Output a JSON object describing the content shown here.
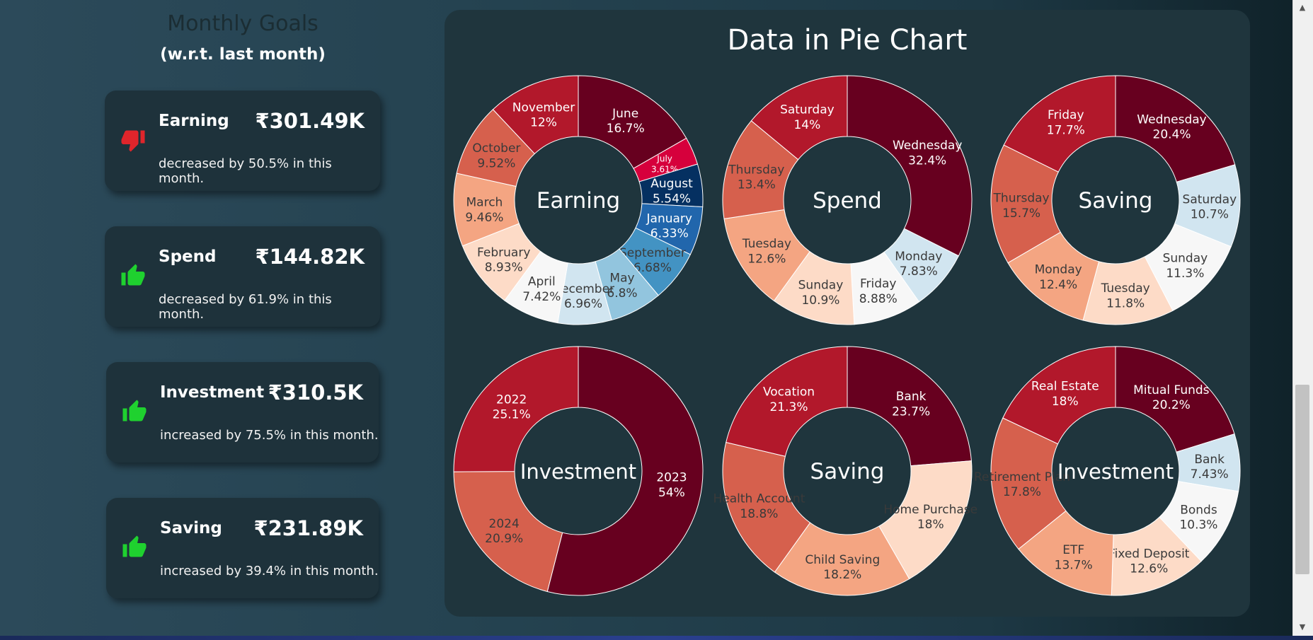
{
  "goals": {
    "title": "Monthly Goals",
    "subtitle": "(w.r.t. last month)",
    "cards": [
      {
        "name": "Earning",
        "amount": "₹301.49K",
        "desc": "decreased by 50.5% in this month.",
        "trend": "down",
        "color": "#e0252b"
      },
      {
        "name": "Spend",
        "amount": "₹144.82K",
        "desc": "decreased by 61.9% in this month.",
        "trend": "up",
        "color": "#1fd12f"
      },
      {
        "name": "Investment",
        "amount": "₹310.5K",
        "desc": "increased by 75.5% in this month.",
        "trend": "up",
        "color": "#1fd12f"
      },
      {
        "name": "Saving",
        "amount": "₹231.89K",
        "desc": "increased by 39.4% in this month.",
        "trend": "up",
        "color": "#1fd12f"
      }
    ]
  },
  "chart_title": "Data in Pie Chart",
  "chart_data": [
    {
      "type": "pie",
      "hole": "donut",
      "center_label": "Earning",
      "slices": [
        {
          "label": "June",
          "value": 16.7,
          "color": "#67001f"
        },
        {
          "label": "July",
          "value": 3.61,
          "color": "#d6003c"
        },
        {
          "label": "August",
          "value": 5.54,
          "color": "#053061"
        },
        {
          "label": "January",
          "value": 6.33,
          "color": "#2166ac"
        },
        {
          "label": "September",
          "value": 6.68,
          "color": "#4393c3"
        },
        {
          "label": "May",
          "value": 6.8,
          "color": "#92c5de"
        },
        {
          "label": "December",
          "value": 6.96,
          "color": "#d1e5f0"
        },
        {
          "label": "April",
          "value": 7.42,
          "color": "#f7f7f7"
        },
        {
          "label": "February",
          "value": 8.93,
          "color": "#fddbc7"
        },
        {
          "label": "March",
          "value": 9.46,
          "color": "#f4a582"
        },
        {
          "label": "October",
          "value": 9.52,
          "color": "#d6604d"
        },
        {
          "label": "November",
          "value": 12,
          "color": "#b2182b"
        }
      ]
    },
    {
      "type": "pie",
      "hole": "donut",
      "center_label": "Spend",
      "slices": [
        {
          "label": "Wednesday",
          "value": 32.4,
          "color": "#67001f"
        },
        {
          "label": "Monday",
          "value": 7.83,
          "color": "#d1e5f0"
        },
        {
          "label": "Friday",
          "value": 8.88,
          "color": "#f7f7f7"
        },
        {
          "label": "Sunday",
          "value": 10.9,
          "color": "#fddbc7"
        },
        {
          "label": "Tuesday",
          "value": 12.6,
          "color": "#f4a582"
        },
        {
          "label": "Thursday",
          "value": 13.4,
          "color": "#d6604d"
        },
        {
          "label": "Saturday",
          "value": 14,
          "color": "#b2182b"
        }
      ]
    },
    {
      "type": "pie",
      "hole": "donut",
      "center_label": "Saving",
      "slices": [
        {
          "label": "Wednesday",
          "value": 20.4,
          "color": "#67001f"
        },
        {
          "label": "Saturday",
          "value": 10.7,
          "color": "#d1e5f0"
        },
        {
          "label": "Sunday",
          "value": 11.3,
          "color": "#f7f7f7"
        },
        {
          "label": "Tuesday",
          "value": 11.8,
          "color": "#fddbc7"
        },
        {
          "label": "Monday",
          "value": 12.4,
          "color": "#f4a582"
        },
        {
          "label": "Thursday",
          "value": 15.7,
          "color": "#d6604d"
        },
        {
          "label": "Friday",
          "value": 17.7,
          "color": "#b2182b"
        }
      ]
    },
    {
      "type": "pie",
      "hole": "donut",
      "center_label": "Investment",
      "slices": [
        {
          "label": "2023",
          "value": 54,
          "color": "#67001f"
        },
        {
          "label": "2024",
          "value": 20.9,
          "color": "#d6604d"
        },
        {
          "label": "2022",
          "value": 25.1,
          "color": "#b2182b"
        }
      ]
    },
    {
      "type": "pie",
      "hole": "donut",
      "center_label": "Saving",
      "slices": [
        {
          "label": "Bank",
          "value": 23.7,
          "color": "#67001f"
        },
        {
          "label": "Home Purchase",
          "value": 18,
          "color": "#fddbc7"
        },
        {
          "label": "Child Saving",
          "value": 18.2,
          "color": "#f4a582"
        },
        {
          "label": "Health Account",
          "value": 18.8,
          "color": "#d6604d"
        },
        {
          "label": "Vocation",
          "value": 21.3,
          "color": "#b2182b"
        }
      ]
    },
    {
      "type": "pie",
      "hole": "donut",
      "center_label": "Investment",
      "slices": [
        {
          "label": "Mitual Funds",
          "value": 20.2,
          "color": "#67001f"
        },
        {
          "label": "Bank",
          "value": 7.43,
          "color": "#d1e5f0"
        },
        {
          "label": "Bonds",
          "value": 10.3,
          "color": "#f7f7f7"
        },
        {
          "label": "Fixed Deposit",
          "value": 12.6,
          "color": "#fddbc7"
        },
        {
          "label": "ETF",
          "value": 13.7,
          "color": "#f4a582"
        },
        {
          "label": "Retirement Plan",
          "value": 17.8,
          "color": "#d6604d"
        },
        {
          "label": "Real Estate",
          "value": 18,
          "color": "#b2182b"
        }
      ]
    }
  ]
}
